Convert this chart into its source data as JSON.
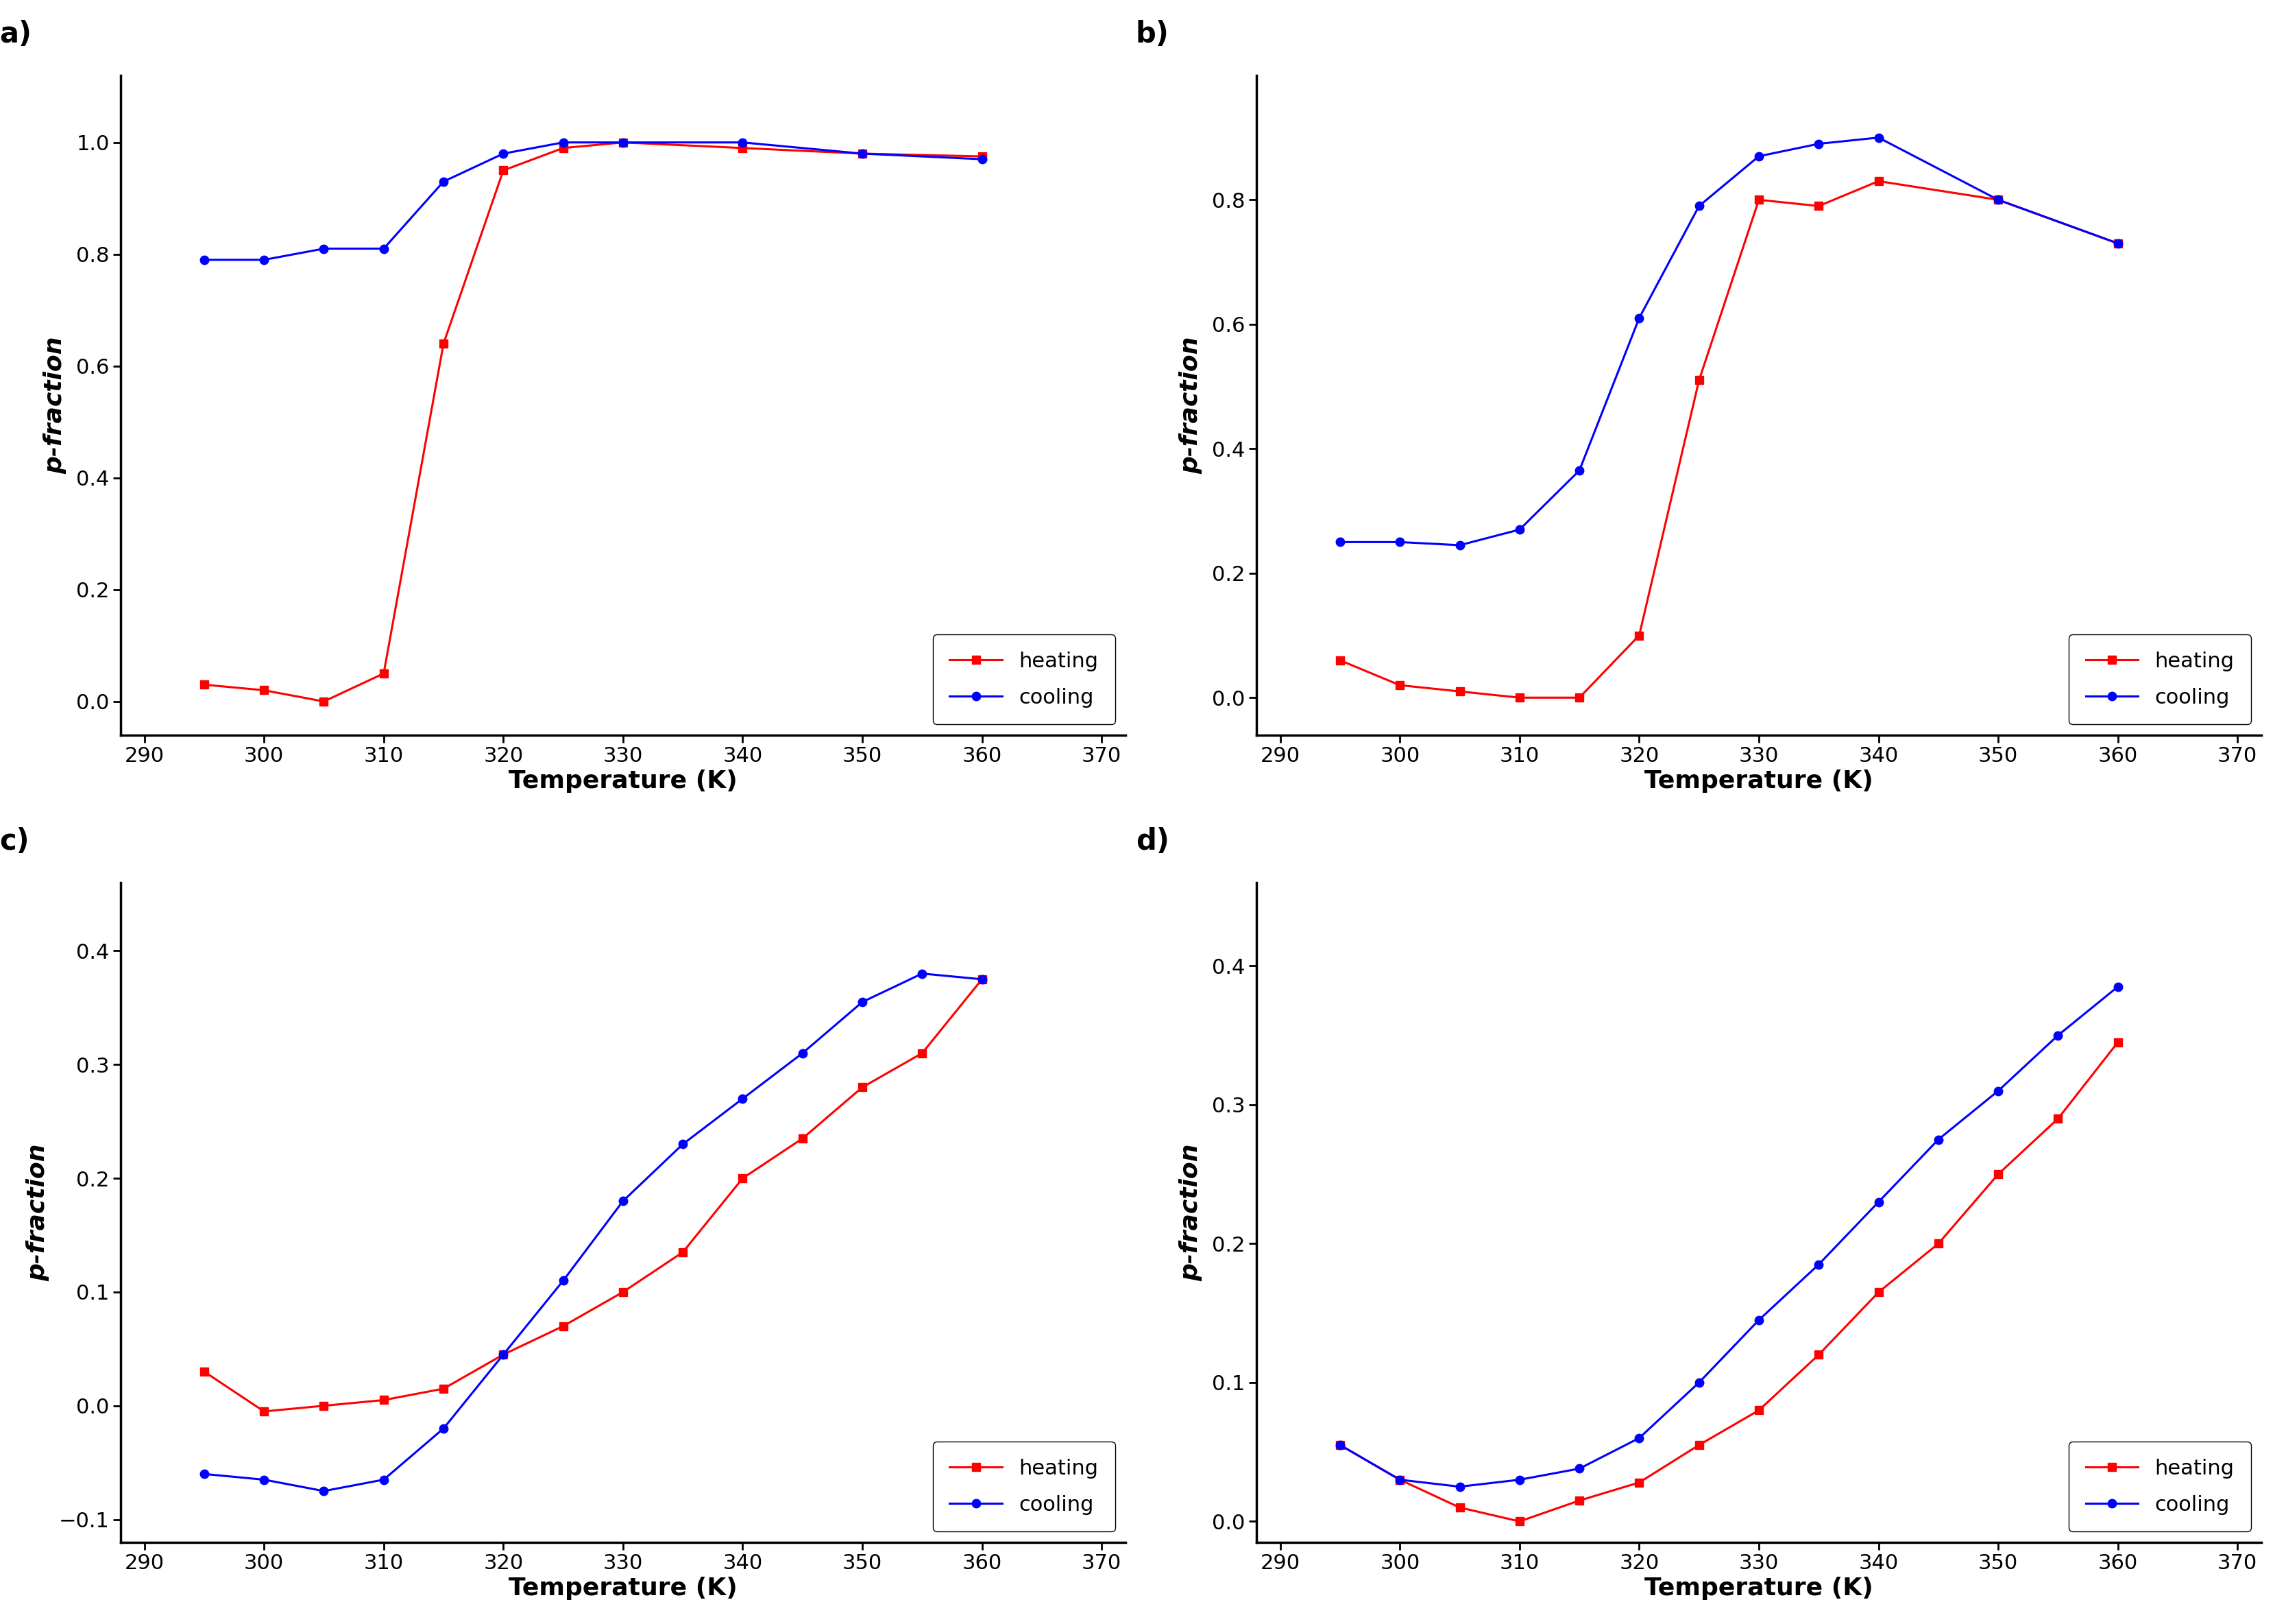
{
  "panel_a": {
    "heating_x": [
      295,
      300,
      305,
      310,
      315,
      320,
      325,
      330,
      340,
      350,
      360
    ],
    "heating_y": [
      0.03,
      0.02,
      0.0,
      0.05,
      0.64,
      0.95,
      0.99,
      1.0,
      0.99,
      0.98,
      0.975
    ],
    "cooling_x": [
      295,
      300,
      305,
      310,
      315,
      320,
      325,
      330,
      340,
      350,
      360
    ],
    "cooling_y": [
      0.79,
      0.79,
      0.81,
      0.81,
      0.93,
      0.98,
      1.0,
      1.0,
      1.0,
      0.98,
      0.97
    ],
    "ylim": [
      -0.06,
      1.12
    ],
    "yticks": [
      0.0,
      0.2,
      0.4,
      0.6,
      0.8,
      1.0
    ],
    "label": "a)"
  },
  "panel_b": {
    "heating_x": [
      295,
      300,
      305,
      310,
      315,
      320,
      325,
      330,
      335,
      340,
      350,
      360
    ],
    "heating_y": [
      0.06,
      0.02,
      0.01,
      0.0,
      0.0,
      0.1,
      0.51,
      0.8,
      0.79,
      0.83,
      0.8,
      0.73
    ],
    "cooling_x": [
      295,
      300,
      305,
      310,
      315,
      320,
      325,
      330,
      335,
      340,
      350,
      360
    ],
    "cooling_y": [
      0.25,
      0.25,
      0.245,
      0.27,
      0.365,
      0.61,
      0.79,
      0.87,
      0.89,
      0.9,
      0.8,
      0.73
    ],
    "ylim": [
      -0.06,
      1.0
    ],
    "yticks": [
      0.0,
      0.2,
      0.4,
      0.6,
      0.8
    ],
    "label": "b)"
  },
  "panel_c": {
    "heating_x": [
      295,
      300,
      305,
      310,
      315,
      320,
      325,
      330,
      335,
      340,
      345,
      350,
      355,
      360
    ],
    "heating_y": [
      0.03,
      -0.005,
      0.0,
      0.005,
      0.015,
      0.045,
      0.07,
      0.1,
      0.135,
      0.2,
      0.235,
      0.28,
      0.31,
      0.375
    ],
    "cooling_x": [
      295,
      300,
      305,
      310,
      315,
      320,
      325,
      330,
      335,
      340,
      345,
      350,
      355,
      360
    ],
    "cooling_y": [
      -0.06,
      -0.065,
      -0.075,
      -0.065,
      -0.02,
      0.045,
      0.11,
      0.18,
      0.23,
      0.27,
      0.31,
      0.355,
      0.38,
      0.375
    ],
    "ylim": [
      -0.12,
      0.46
    ],
    "yticks": [
      -0.1,
      0.0,
      0.1,
      0.2,
      0.3,
      0.4
    ],
    "label": "c)"
  },
  "panel_d": {
    "heating_x": [
      295,
      300,
      305,
      310,
      315,
      320,
      325,
      330,
      335,
      340,
      345,
      350,
      355,
      360
    ],
    "heating_y": [
      0.055,
      0.03,
      0.01,
      0.0,
      0.015,
      0.028,
      0.055,
      0.08,
      0.12,
      0.165,
      0.2,
      0.25,
      0.29,
      0.345
    ],
    "cooling_x": [
      295,
      300,
      305,
      310,
      315,
      320,
      325,
      330,
      335,
      340,
      345,
      350,
      355,
      360
    ],
    "cooling_y": [
      0.055,
      0.03,
      0.025,
      0.03,
      0.038,
      0.06,
      0.1,
      0.145,
      0.185,
      0.23,
      0.275,
      0.31,
      0.35,
      0.385
    ],
    "ylim": [
      -0.015,
      0.46
    ],
    "yticks": [
      0.0,
      0.1,
      0.2,
      0.3,
      0.4
    ],
    "label": "d)"
  },
  "xlim": [
    288,
    372
  ],
  "xticks": [
    290,
    300,
    310,
    320,
    330,
    340,
    350,
    360,
    370
  ],
  "xlabel": "Temperature (K)",
  "ylabel": "p-fraction",
  "heating_color": "#FF0000",
  "cooling_color": "#0000FF",
  "line_width": 2.2,
  "marker_size": 9,
  "heating_marker": "s",
  "cooling_marker": "o",
  "legend_heating": "heating",
  "legend_cooling": "cooling",
  "bg_color": "#ffffff",
  "spine_color": "#000000",
  "label_fontsize": 26,
  "tick_fontsize": 22,
  "panel_label_fontsize": 30,
  "legend_fontsize": 22
}
